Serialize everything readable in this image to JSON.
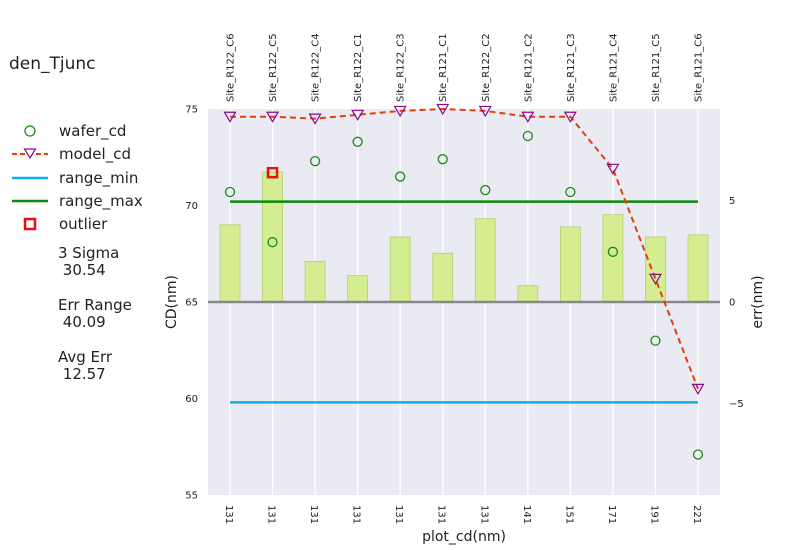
{
  "title": "den_Tjunc",
  "legend": [
    {
      "key": "wafer_cd",
      "label": "wafer_cd"
    },
    {
      "key": "model_cd",
      "label": "model_cd"
    },
    {
      "key": "range_min",
      "label": "range_min"
    },
    {
      "key": "range_max",
      "label": "range_max"
    },
    {
      "key": "outlier",
      "label": "outlier"
    }
  ],
  "stats": [
    {
      "label": "3 Sigma",
      "value": "30.54"
    },
    {
      "label": "Err Range",
      "value": "40.09"
    },
    {
      "label": "Avg Err",
      "value": "12.57"
    }
  ],
  "chart_data": {
    "type": "bar+line+scatter",
    "categories": [
      "131",
      "131",
      "131",
      "131",
      "131",
      "131",
      "131",
      "141",
      "151",
      "171",
      "191",
      "221"
    ],
    "top_labels": [
      "Site_R122_C6",
      "Site_R122_C5",
      "Site_R122_C4",
      "Site_R122_C1",
      "Site_R122_C3",
      "Site_R121_C1",
      "Site_R122_C2",
      "Site_R121_C2",
      "Site_R121_C3",
      "Site_R121_C4",
      "Site_R121_C5",
      "Site_R121_C6"
    ],
    "xlabel": "plot_cd(nm)",
    "ylabel": "CD(nm)",
    "y2label": "err(nm)",
    "ylim": [
      55,
      75
    ],
    "yticks": [
      55,
      60,
      65,
      70,
      75
    ],
    "y2lim": [
      -9.5,
      9.5
    ],
    "y2ticks": [
      -5,
      0,
      5
    ],
    "err_bar_values": [
      3.8,
      6.4,
      2.0,
      1.3,
      3.2,
      2.4,
      4.1,
      0.8,
      3.7,
      4.3,
      3.2,
      3.3
    ],
    "wafer_cd": [
      70.7,
      68.1,
      72.3,
      73.3,
      71.5,
      72.4,
      70.8,
      73.6,
      70.7,
      67.6,
      63.0,
      57.1
    ],
    "model_cd": [
      74.6,
      74.6,
      74.5,
      74.7,
      74.9,
      75.0,
      74.9,
      74.6,
      74.6,
      71.9,
      66.2,
      60.5
    ],
    "range_min": 59.8,
    "range_max": 70.2,
    "outlier_index": 1,
    "outlier_value": 71.7,
    "zero_line": 0,
    "colors": {
      "background": "#EAEAF2",
      "bar": "#D4ED91",
      "bar_edge": "#B7CF73",
      "wafer_cd": "#1a8a1a",
      "model_cd_line": "#E0400A",
      "model_cd_marker": "#8B0A8B",
      "range_min": "#10AEEA",
      "range_max": "#0B8A0B",
      "outlier": "#E81010",
      "zero_line": "#888888"
    }
  }
}
